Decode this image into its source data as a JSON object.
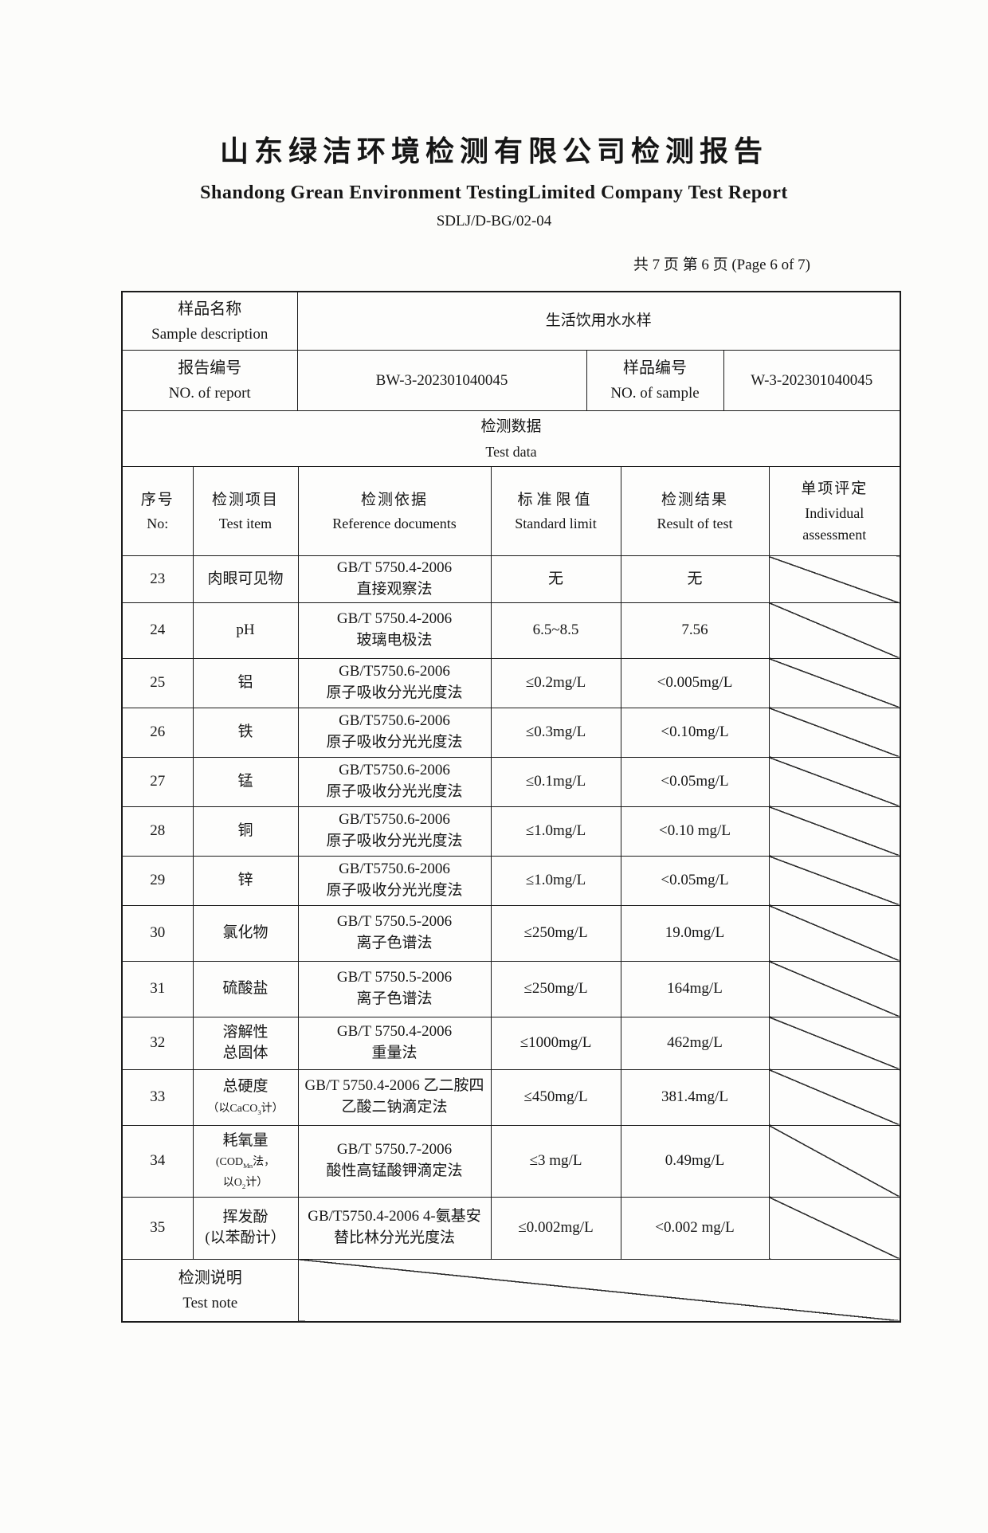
{
  "header": {
    "title_cn": "山东绿洁环境检测有限公司检测报告",
    "title_en": "Shandong Grean Environment TestingLimited Company Test Report",
    "doc_code": "SDLJ/D-BG/02-04",
    "page_info": "共 7 页  第 6 页  (Page 6 of 7)"
  },
  "info": {
    "sample_desc_cn": "样品名称",
    "sample_desc_en": "Sample description",
    "sample_desc_value": "生活饮用水水样",
    "report_no_cn": "报告编号",
    "report_no_en": "NO. of report",
    "report_no_value": "BW-3-202301040045",
    "sample_no_cn": "样品编号",
    "sample_no_en": "NO. of sample",
    "sample_no_value": "W-3-202301040045",
    "section_cn": "检测数据",
    "section_en": "Test data"
  },
  "columns": [
    {
      "cn": "序号",
      "en": "No:"
    },
    {
      "cn": "检测项目",
      "en": "Test item"
    },
    {
      "cn": "检测依据",
      "en": "Reference documents"
    },
    {
      "cn": "标准限值",
      "en": "Standard limit"
    },
    {
      "cn": "检测结果",
      "en": "Result of test"
    },
    {
      "cn": "单项评定",
      "en": "Individual assessment"
    }
  ],
  "rows": [
    {
      "no": "23",
      "item_html": "肉眼可见物",
      "ref_html": "GB/T 5750.4-2006<br>直接观察法",
      "limit": "无",
      "result": "无"
    },
    {
      "no": "24",
      "item_html": "pH",
      "ref_html": "GB/T 5750.4-2006<br>玻璃电极法",
      "limit": "6.5~8.5",
      "result": "7.56"
    },
    {
      "no": "25",
      "item_html": "铝",
      "ref_html": "GB/T5750.6-2006<br>原子吸收分光光度法",
      "limit": "≤0.2mg/L",
      "result": "<0.005mg/L"
    },
    {
      "no": "26",
      "item_html": "铁",
      "ref_html": "GB/T5750.6-2006<br>原子吸收分光光度法",
      "limit": "≤0.3mg/L",
      "result": "<0.10mg/L"
    },
    {
      "no": "27",
      "item_html": "锰",
      "ref_html": "GB/T5750.6-2006<br>原子吸收分光光度法",
      "limit": "≤0.1mg/L",
      "result": "<0.05mg/L"
    },
    {
      "no": "28",
      "item_html": "铜",
      "ref_html": "GB/T5750.6-2006<br>原子吸收分光光度法",
      "limit": "≤1.0mg/L",
      "result": "<0.10 mg/L"
    },
    {
      "no": "29",
      "item_html": "锌",
      "ref_html": "GB/T5750.6-2006<br>原子吸收分光光度法",
      "limit": "≤1.0mg/L",
      "result": "<0.05mg/L"
    },
    {
      "no": "30",
      "item_html": "氯化物",
      "ref_html": "GB/T 5750.5-2006<br>离子色谱法",
      "limit": "≤250mg/L",
      "result": "19.0mg/L"
    },
    {
      "no": "31",
      "item_html": "硫酸盐",
      "ref_html": "GB/T 5750.5-2006<br>离子色谱法",
      "limit": "≤250mg/L",
      "result": "164mg/L"
    },
    {
      "no": "32",
      "item_html": "溶解性<br>总固体",
      "ref_html": "GB/T 5750.4-2006<br>重量法",
      "limit": "≤1000mg/L",
      "result": "462mg/L"
    },
    {
      "no": "33",
      "item_html": "总硬度<br><span class='small'>（以CaCO<sub>3</sub>计）</span>",
      "ref_html": "GB/T 5750.4-2006 乙二胺四乙酸二钠滴定法",
      "limit": "≤450mg/L",
      "result": "381.4mg/L"
    },
    {
      "no": "34",
      "item_html": "耗氧量<br><span class='small'>(COD<sub>Mn</sub>法，<br>以O<sub>2</sub>计）</span>",
      "ref_html": "GB/T 5750.7-2006<br>酸性高锰酸钾滴定法",
      "limit": "≤3 mg/L",
      "result": "0.49mg/L"
    },
    {
      "no": "35",
      "item_html": "挥发酚<br>(以苯酚计）",
      "ref_html": "GB/T5750.4-2006  4-氨基安替比林分光光度法",
      "limit": "≤0.002mg/L",
      "result": "<0.002 mg/L"
    }
  ],
  "note": {
    "cn": "检测说明",
    "en": "Test note"
  }
}
